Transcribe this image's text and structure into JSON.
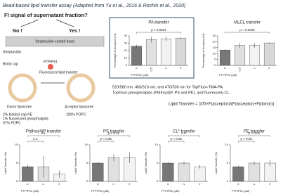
{
  "header": {
    "title": "Bead-based lipid transfer assay (Adapted from Yu et al., 2016 & Rochin et al., 2020)"
  },
  "diagram": {
    "question": "FI signal of supernatant fraction?",
    "no": "No !",
    "yes": "Yes !",
    "bead": "Streptavidin-coated bead",
    "streptavidin": "Streptavidin",
    "biotin": "Biotin cap",
    "protein": "PTPIP51",
    "transfer": "Fluorescent lipid transfer",
    "donor": "Donor liposome",
    "acceptor": "Acceptor liposome",
    "donor_comp": [
      "2% biotinyl cap-PE",
      "1% fluorescent phospholipids",
      "97% POPC"
    ],
    "acceptor_comp": "100% POPC"
  },
  "notes": {
    "wavelengths": [
      "520/580 nm, 450/510 nm, and 470/530 nm for TopFluor-TMA-PA,",
      "TopFluor-phospholipids (PtdIns(4)P, PS and PE), and fluorescein-CL"
    ],
    "formula": "Lipid Transfer = 100×F(acceptor)/(F(acceptor)+F(donor))"
  },
  "chart_data": [
    {
      "type": "bar",
      "title": "PA transfer",
      "ylabel": "Percentage of Acceptor (%)",
      "xlabel": "PTPIP51 (μM)",
      "categories": [
        "0",
        "0.5",
        "2",
        "4"
      ],
      "values": [
        26,
        35,
        36,
        37
      ],
      "errors": [
        2,
        4,
        3,
        1
      ],
      "colors": [
        "#777777",
        "#e0e0e0",
        "#f2f2f2",
        "#d8d8d8"
      ],
      "ylim": [
        0,
        40
      ],
      "yticks": [
        0,
        10,
        20,
        30,
        40
      ],
      "annotations": [
        "p < 0.0001"
      ]
    },
    {
      "type": "bar",
      "title": "MLCL transfer",
      "ylabel": "Percentage of Acceptor (%)",
      "xlabel": "PTPIP51 (μM)",
      "categories": [
        "0",
        "0.5",
        "2",
        "4"
      ],
      "values": [
        13,
        17,
        17,
        19
      ],
      "errors": [
        0.5,
        2,
        2,
        0.5
      ],
      "colors": [
        "#777777",
        "#e0e0e0",
        "#f2f2f2",
        "#d8d8d8"
      ],
      "ylim": [
        0,
        25
      ],
      "yticks": [
        0,
        5,
        10,
        15,
        20,
        25
      ],
      "annotations": [
        "p = 0.0005"
      ]
    },
    {
      "type": "bar",
      "title": "PtdIns(4)P transfer",
      "ylabel": "Lipid Transfer (%)",
      "xlabel": "PTPIP51 (μM)",
      "categories": [
        "0",
        "2",
        "4"
      ],
      "values": [
        4,
        4,
        2
      ],
      "errors": [
        0.5,
        3,
        1
      ],
      "colors": [
        "#777777",
        "#e0e0e0",
        "#f2f2f2"
      ],
      "ylim": [
        0,
        10
      ],
      "yticks": [
        0,
        5,
        10
      ],
      "annotations": [
        "n.s.",
        "n.s."
      ]
    },
    {
      "type": "bar",
      "title": "PS transfer",
      "ylabel": "Lipid Transfer (%)",
      "xlabel": "PTPIP51 (μM)",
      "categories": [
        "0",
        "2",
        "4"
      ],
      "values": [
        5,
        6.5,
        6.5
      ],
      "errors": [
        0.3,
        1,
        1.5
      ],
      "colors": [
        "#777777",
        "#e0e0e0",
        "#f2f2f2"
      ],
      "ylim": [
        0,
        10
      ],
      "yticks": [
        0,
        5,
        10
      ],
      "annotations": [
        "p < 0.05",
        "p < 0.01"
      ]
    },
    {
      "type": "bar",
      "title": "CL* transfer",
      "ylabel": "Lipid Transfer (%)",
      "xlabel": "PTPIP51 (μM)",
      "categories": [
        "0",
        "2",
        "4"
      ],
      "values": [
        5,
        5,
        4
      ],
      "errors": [
        0.3,
        0.4,
        0.5
      ],
      "colors": [
        "#777777",
        "#e0e0e0",
        "#f2f2f2"
      ],
      "ylim": [
        0,
        10
      ],
      "yticks": [
        0,
        5,
        10
      ],
      "annotations": [
        "p < 0.05",
        "n.s."
      ]
    },
    {
      "type": "bar",
      "title": "PE transfer",
      "ylabel": "Lipid Transfer (%)",
      "xlabel": "PTPIP51 (μM)",
      "categories": [
        "0",
        "2",
        "4"
      ],
      "values": [
        4,
        5,
        5
      ],
      "errors": [
        0.3,
        0.5,
        0.8
      ],
      "colors": [
        "#777777",
        "#e0e0e0",
        "#f2f2f2"
      ],
      "ylim": [
        0,
        10
      ],
      "yticks": [
        0,
        5,
        10
      ],
      "annotations": [
        "p < 0.05",
        "p < 0.01"
      ]
    }
  ]
}
